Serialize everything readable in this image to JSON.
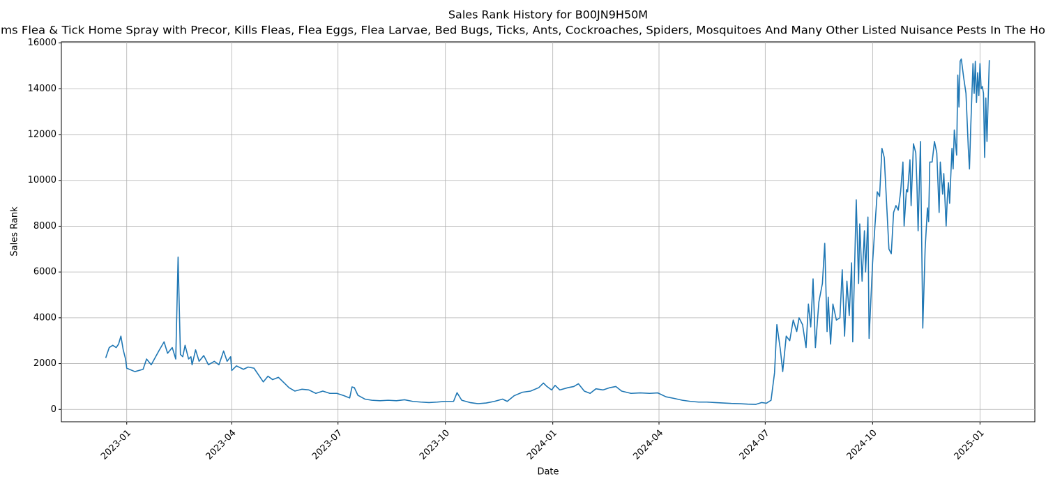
{
  "chart_data": {
    "type": "line",
    "title": "Sales Rank History for B00JN9H50M",
    "subtitle": "ms Flea & Tick Home Spray with Precor, Kills Fleas, Flea Eggs, Flea Larvae, Bed Bugs, Ticks, Ants, Cockroaches, Spiders, Mosquitoes And Many Other Listed Nuisance Pests In The Ho",
    "x_label": "Date",
    "y_label": "Sales Rank",
    "grid": true,
    "xlim": [
      19302,
      20136
    ],
    "ylim": [
      -540,
      16050
    ],
    "xticks": [
      {
        "value": 19358,
        "label": "2023-01"
      },
      {
        "value": 19448,
        "label": "2023-04"
      },
      {
        "value": 19539,
        "label": "2023-07"
      },
      {
        "value": 19631,
        "label": "2023-10"
      },
      {
        "value": 19723,
        "label": "2024-01"
      },
      {
        "value": 19814,
        "label": "2024-04"
      },
      {
        "value": 19905,
        "label": "2024-07"
      },
      {
        "value": 19997,
        "label": "2024-10"
      },
      {
        "value": 20089,
        "label": "2025-01"
      }
    ],
    "yticks": [
      0,
      2000,
      4000,
      6000,
      8000,
      10000,
      12000,
      14000,
      16000
    ],
    "series": [
      {
        "name": "Sales Rank",
        "color": "#1f77b4",
        "x": [
          19340,
          19343,
          19346,
          19349,
          19351,
          19353,
          19355,
          19357,
          19358,
          19365,
          19372,
          19375,
          19379,
          19386,
          19390,
          19393,
          19397,
          19400,
          19402,
          19404,
          19406,
          19408,
          19411,
          19413,
          19414,
          19417,
          19420,
          19424,
          19428,
          19433,
          19437,
          19441,
          19444,
          19447,
          19448,
          19452,
          19458,
          19462,
          19467,
          19471,
          19475,
          19479,
          19483,
          19488,
          19493,
          19497,
          19502,
          19508,
          19514,
          19520,
          19526,
          19532,
          19538,
          19544,
          19549,
          19551,
          19553,
          19556,
          19562,
          19568,
          19575,
          19582,
          19589,
          19596,
          19603,
          19610,
          19617,
          19624,
          19631,
          19638,
          19641,
          19645,
          19652,
          19659,
          19666,
          19673,
          19680,
          19684,
          19690,
          19697,
          19704,
          19711,
          19715,
          19718,
          19722,
          19725,
          19729,
          19736,
          19741,
          19745,
          19750,
          19755,
          19760,
          19766,
          19772,
          19777,
          19782,
          19790,
          19798,
          19806,
          19813,
          19820,
          19827,
          19834,
          19841,
          19848,
          19855,
          19862,
          19869,
          19876,
          19883,
          19890,
          19897,
          19902,
          19906,
          19910,
          19913,
          19915,
          19918,
          19920,
          19923,
          19926,
          19929,
          19932,
          19934,
          19937,
          19940,
          19942,
          19944,
          19946,
          19948,
          19951,
          19954,
          19956,
          19958,
          19959,
          19961,
          19963,
          19966,
          19969,
          19971,
          19973,
          19975,
          19977,
          19979,
          19980,
          19983,
          19985,
          19986,
          19988,
          19990,
          19991,
          19993,
          19994,
          19997,
          19999,
          20001,
          20003,
          20005,
          20007,
          20009,
          20011,
          20013,
          20015,
          20017,
          20019,
          20021,
          20023,
          20024,
          20026,
          20027,
          20029,
          20030,
          20032,
          20034,
          20035,
          20036,
          20038,
          20040,
          20042,
          20044,
          20045,
          20046,
          20048,
          20050,
          20052,
          20054,
          20055,
          20057,
          20058,
          20060,
          20061,
          20062,
          20063,
          20065,
          20066,
          20067,
          20069,
          20070,
          20071,
          20072,
          20073,
          20075,
          20077,
          20079,
          20080,
          20081,
          20083,
          20084,
          20085,
          20086,
          20087,
          20088,
          20089,
          20090,
          20091,
          20092,
          20093,
          20094,
          20095,
          20096,
          20097
        ],
        "values": [
          2250,
          2700,
          2800,
          2700,
          2850,
          3200,
          2600,
          2200,
          1800,
          1650,
          1750,
          2200,
          1950,
          2600,
          2950,
          2450,
          2700,
          2200,
          6650,
          2400,
          2300,
          2800,
          2200,
          2300,
          1950,
          2600,
          2100,
          2350,
          1950,
          2100,
          1950,
          2550,
          2100,
          2300,
          1700,
          1900,
          1750,
          1850,
          1800,
          1500,
          1200,
          1450,
          1300,
          1400,
          1150,
          950,
          800,
          880,
          850,
          700,
          800,
          700,
          700,
          600,
          500,
          980,
          950,
          620,
          450,
          400,
          380,
          400,
          380,
          420,
          350,
          320,
          300,
          320,
          350,
          350,
          730,
          400,
          300,
          250,
          280,
          350,
          450,
          350,
          600,
          750,
          800,
          950,
          1150,
          1000,
          850,
          1050,
          850,
          950,
          1000,
          1120,
          800,
          700,
          900,
          850,
          950,
          1000,
          800,
          700,
          720,
          700,
          720,
          550,
          480,
          400,
          350,
          320,
          320,
          300,
          280,
          260,
          250,
          230,
          220,
          300,
          270,
          400,
          1600,
          3700,
          2600,
          1650,
          3200,
          3000,
          3900,
          3400,
          4000,
          3700,
          2700,
          4600,
          3600,
          5700,
          2700,
          4700,
          5500,
          7250,
          3400,
          4900,
          2850,
          4600,
          3900,
          4000,
          6100,
          3200,
          5600,
          4100,
          6400,
          2950,
          9150,
          5500,
          8100,
          5600,
          7800,
          6000,
          8400,
          3100,
          6400,
          8000,
          9500,
          9300,
          11400,
          11000,
          9000,
          7000,
          6800,
          8600,
          8900,
          8700,
          9500,
          10800,
          8000,
          9600,
          9500,
          10900,
          8900,
          11600,
          11200,
          9800,
          7800,
          11700,
          3550,
          7000,
          8800,
          8200,
          10800,
          10800,
          11700,
          11200,
          8600,
          10800,
          9400,
          10300,
          8000,
          9200,
          9900,
          9000,
          11400,
          10500,
          12200,
          11100,
          14600,
          13200,
          15200,
          15300,
          14500,
          13800,
          11400,
          10500,
          12200,
          15100,
          13800,
          15200,
          13400,
          14700,
          13700,
          15100,
          14000,
          14100,
          13800,
          11000,
          13600,
          11700,
          13500,
          15250
        ]
      }
    ]
  }
}
